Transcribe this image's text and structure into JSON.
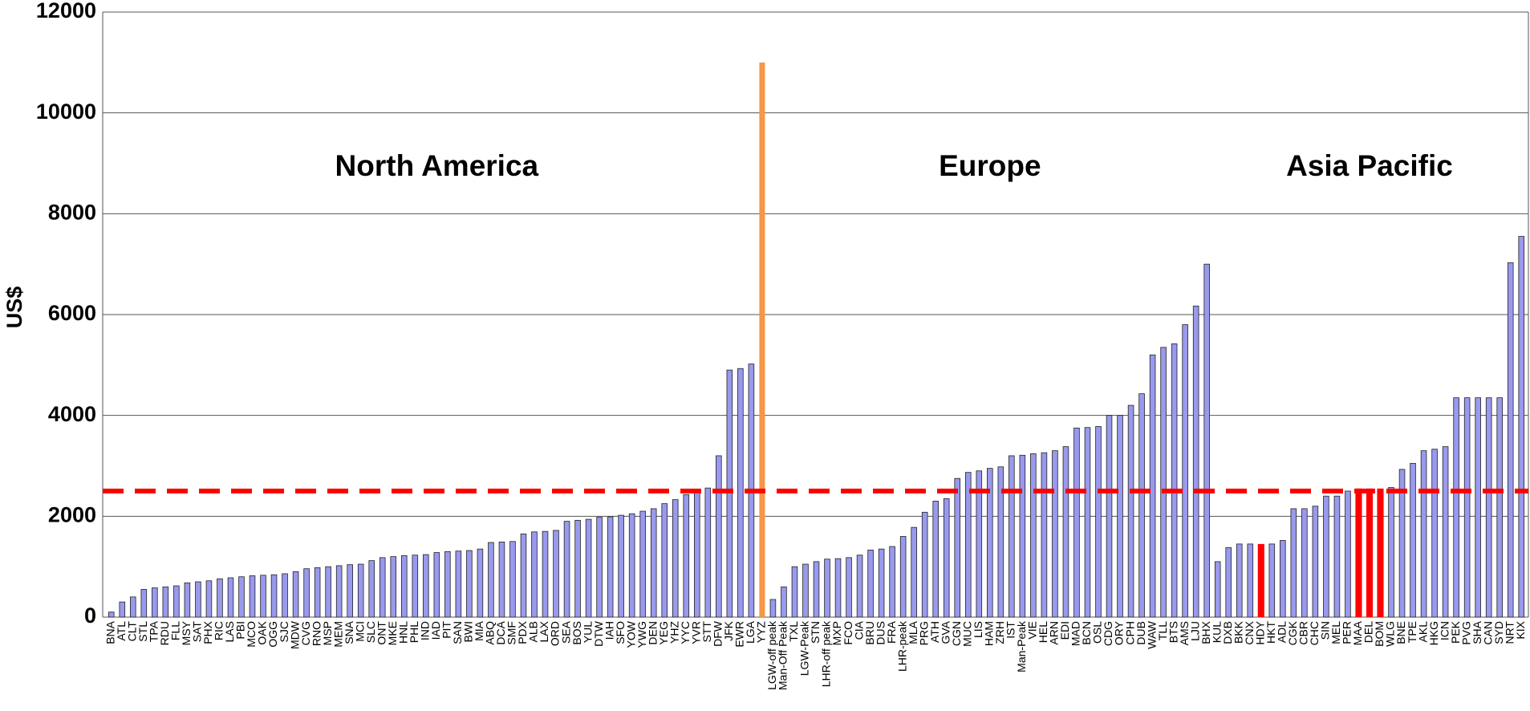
{
  "chart_data": {
    "type": "bar",
    "y_label": "US$",
    "ylim": [
      0,
      12000
    ],
    "yticks": [
      0,
      2000,
      4000,
      6000,
      8000,
      10000,
      12000
    ],
    "grid": true,
    "color": "#9999ee",
    "highlight_color": "#ff0000",
    "reference_line": {
      "value": 2500,
      "color": "#ff0000"
    },
    "divider": {
      "value": 11000,
      "color": "#f79646"
    },
    "groups": [
      {
        "name": "North America",
        "categories": [
          "BNA",
          "ATL",
          "CLT",
          "STL",
          "TPA",
          "RDU",
          "FLL",
          "MSY",
          "SAT",
          "PHX",
          "RIC",
          "LAS",
          "PBI",
          "MCO",
          "OAK",
          "OGG",
          "SJC",
          "MDW",
          "CVG",
          "RNO",
          "MSP",
          "MEM",
          "SNA",
          "MCI",
          "SLC",
          "ONT",
          "MKE",
          "HNL",
          "PHL",
          "IND",
          "IAD",
          "PIT",
          "SAN",
          "BWI",
          "MIA",
          "ABQ",
          "DCA",
          "SMF",
          "PDX",
          "ALB",
          "LAX",
          "ORD",
          "SEA",
          "BOS",
          "YUL",
          "DTW",
          "IAH",
          "SFO",
          "YOW",
          "YWG",
          "DEN",
          "YEG",
          "YHZ",
          "YYC",
          "YVR",
          "STT",
          "DFW",
          "JFK",
          "EWR",
          "LGA",
          "YYZ"
        ],
        "values": [
          100,
          300,
          400,
          550,
          580,
          600,
          620,
          680,
          700,
          720,
          760,
          780,
          800,
          820,
          830,
          840,
          860,
          900,
          960,
          980,
          1000,
          1020,
          1040,
          1050,
          1120,
          1180,
          1200,
          1220,
          1230,
          1240,
          1280,
          1300,
          1310,
          1320,
          1350,
          1480,
          1490,
          1500,
          1650,
          1690,
          1700,
          1720,
          1900,
          1920,
          1940,
          1980,
          1990,
          2020,
          2050,
          2100,
          2150,
          2250,
          2330,
          2430,
          2520,
          2560,
          3200,
          4900,
          4930,
          5020,
          null
        ],
        "highlight_indices": []
      },
      {
        "name": "Europe",
        "categories": [
          "LGW-off peak",
          "Man-Off Peak",
          "TXL",
          "LGW-Peak",
          "STN",
          "LHR-off peak",
          "MXP",
          "FCO",
          "CIA",
          "BRU",
          "DUS",
          "FRA",
          "LHR-peak",
          "MLA",
          "PRG",
          "ATH",
          "GVA",
          "CGN",
          "MUC",
          "LIS",
          "HAM",
          "ZRH",
          "IST",
          "Man-Peak",
          "VIE",
          "HEL",
          "ARN",
          "EDI",
          "MAD",
          "BCN",
          "OSL",
          "CDG",
          "ORY",
          "CPH",
          "DUB",
          "WAW",
          "TLL",
          "BTS",
          "AMS",
          "LJU",
          "BHX"
        ],
        "values": [
          350,
          600,
          1000,
          1050,
          1100,
          1150,
          1160,
          1180,
          1230,
          1330,
          1350,
          1400,
          1600,
          1780,
          2080,
          2300,
          2350,
          2750,
          2870,
          2900,
          2950,
          2980,
          3200,
          3210,
          3240,
          3260,
          3300,
          3380,
          3750,
          3760,
          3780,
          4000,
          4000,
          4200,
          4430,
          5200,
          5350,
          5420,
          5800,
          6170,
          7000
        ],
        "highlight_indices": []
      },
      {
        "name": "Asia Pacific",
        "categories": [
          "KUL",
          "DXB",
          "BKK",
          "CNX",
          "HDY",
          "HKT",
          "ADL",
          "CGK",
          "CBR",
          "CHC",
          "SIN",
          "MEL",
          "PER",
          "MAA",
          "DEL",
          "BOM",
          "WLG",
          "BNE",
          "TPE",
          "AKL",
          "HKG",
          "ICN",
          "PEK",
          "PVG",
          "SHA",
          "CAN",
          "SYD",
          "NRT",
          "KIX"
        ],
        "values": [
          1100,
          1380,
          1450,
          1450,
          1450,
          1450,
          1520,
          2150,
          2150,
          2200,
          2400,
          2400,
          2500,
          2550,
          2550,
          2550,
          2570,
          2930,
          3050,
          3300,
          3330,
          3380,
          4350,
          4350,
          4350,
          4350,
          4350,
          7030,
          7550
        ],
        "highlight_indices": [
          4,
          13,
          14,
          15
        ]
      }
    ]
  }
}
